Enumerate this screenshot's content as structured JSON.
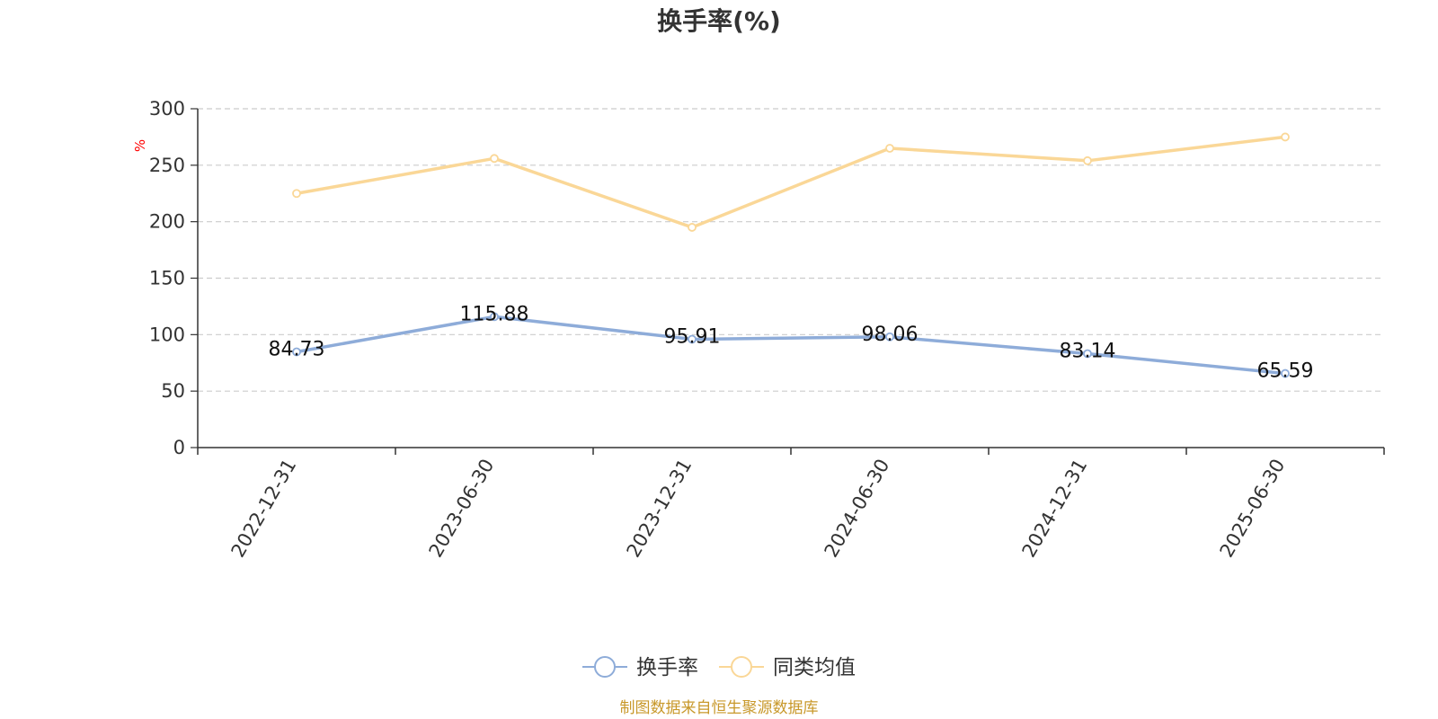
{
  "chart_data": {
    "type": "line",
    "title": "换手率(%)",
    "ylabel": "%",
    "xlabel": "",
    "categories": [
      "2022-12-31",
      "2023-06-30",
      "2023-12-31",
      "2024-06-30",
      "2024-12-31",
      "2025-06-30"
    ],
    "ylim": [
      0,
      300
    ],
    "yticks": [
      0,
      50,
      100,
      150,
      200,
      250,
      300
    ],
    "grid": true,
    "legend_position": "bottom-center",
    "series": [
      {
        "name": "换手率",
        "values": [
          84.73,
          115.88,
          95.91,
          98.06,
          83.14,
          65.59
        ],
        "labels": [
          "84.73",
          "115.88",
          "95.91",
          "98.06",
          "83.14",
          "65.59"
        ],
        "color": "#8eacd9",
        "show_labels": true
      },
      {
        "name": "同类均值",
        "values": [
          225,
          256,
          195,
          265,
          254,
          275
        ],
        "color": "#fad797",
        "show_labels": false
      }
    ]
  },
  "footer": {
    "source": "制图数据来自恒生聚源数据库"
  }
}
